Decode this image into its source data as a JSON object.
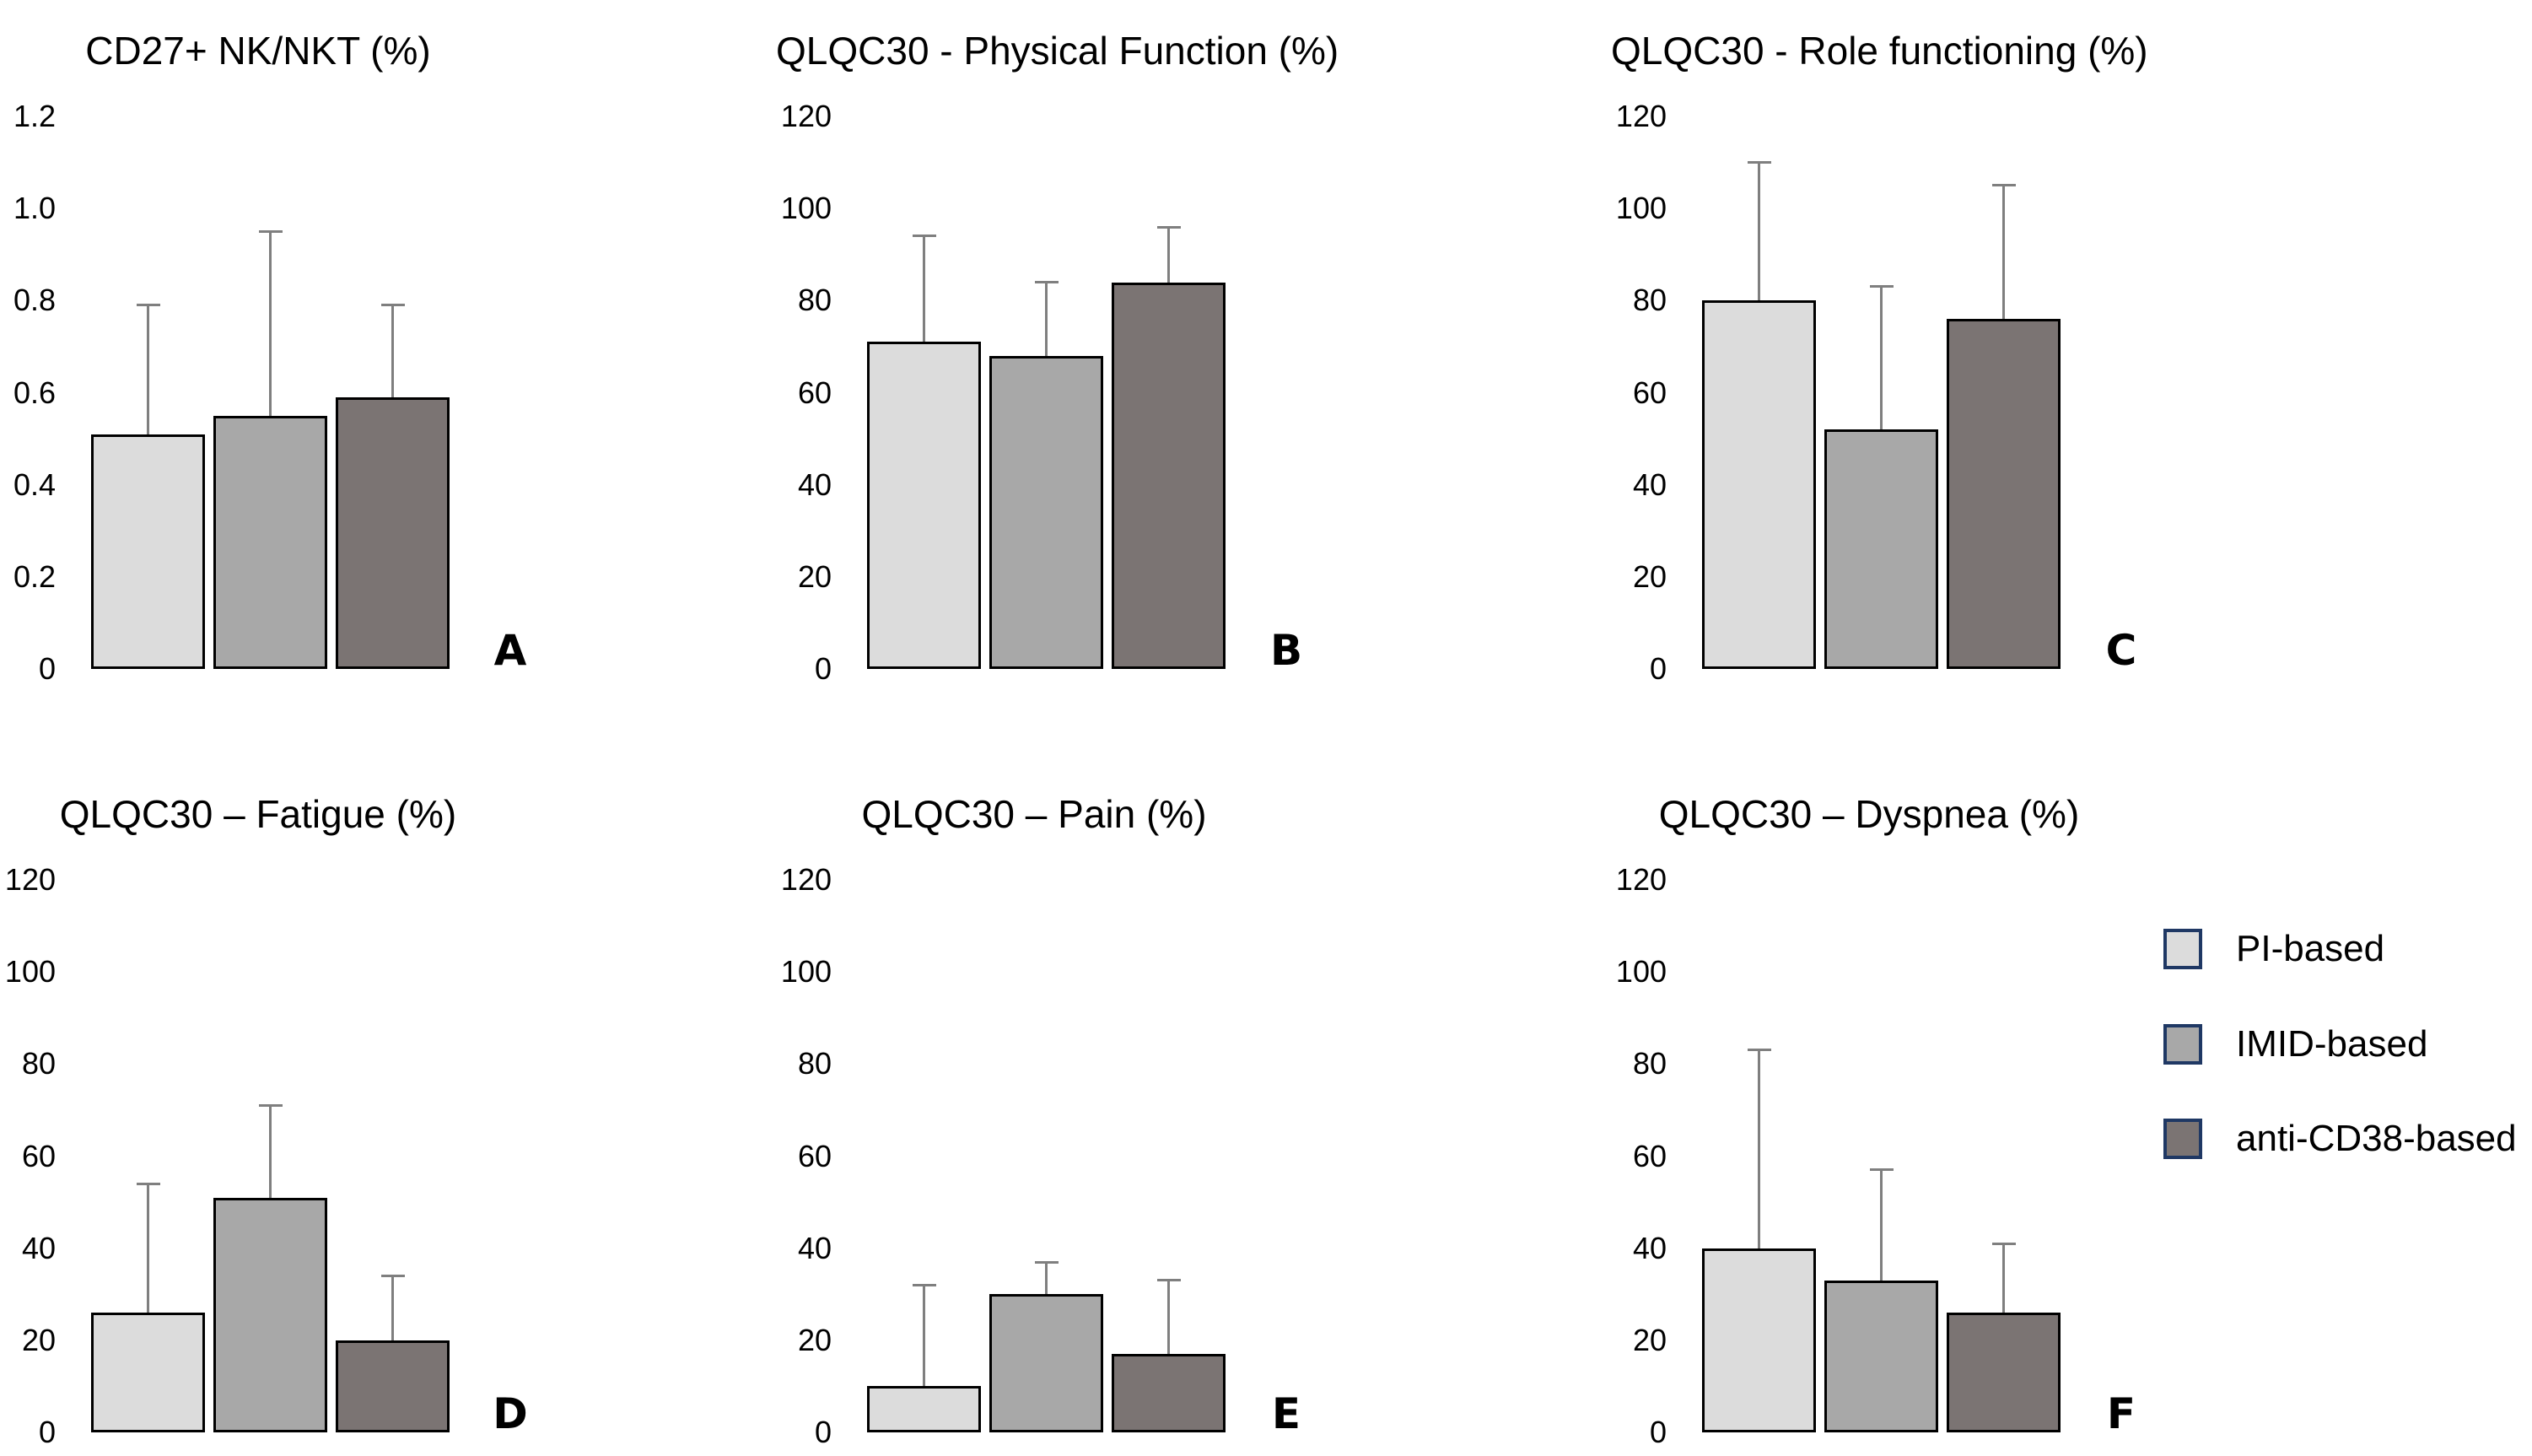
{
  "figure": {
    "background": "#ffffff",
    "bar_border_color": "#000000",
    "error_bar_color": "#7f7f7f",
    "description": "Six bar-chart panels (A-F) with SD error whiskers comparing three therapy groups"
  },
  "legend": {
    "position": "right-middle",
    "swatch_border_color": "#1f3864",
    "items": [
      {
        "label": "PI-based",
        "color": "#dcdcdc"
      },
      {
        "label": "IMID-based",
        "color": "#a8a8a8"
      },
      {
        "label": "anti-CD38-based",
        "color": "#7b7473"
      }
    ]
  },
  "chart_data": [
    {
      "type": "bar",
      "panel_letter": "A",
      "title": "CD27+ NK/NKT (%)",
      "categories": [
        "PI-based",
        "IMID-based",
        "anti-CD38-based"
      ],
      "values": [
        0.51,
        0.55,
        0.59
      ],
      "error_top": [
        0.79,
        0.95,
        0.79
      ],
      "ylim": [
        0,
        1.2
      ],
      "ytick_labels": [
        "1.2",
        "1.0",
        "0.8",
        "0.6",
        "0.4",
        "0.2",
        "0"
      ],
      "grid": false,
      "xlabel": "",
      "ylabel": ""
    },
    {
      "type": "bar",
      "panel_letter": "B",
      "title": "QLQC30 - Physical Function (%)",
      "categories": [
        "PI-based",
        "IMID-based",
        "anti-CD38-based"
      ],
      "values": [
        71,
        68,
        84
      ],
      "error_top": [
        94,
        84,
        96
      ],
      "ylim": [
        0,
        120
      ],
      "ytick_labels": [
        "120",
        "100",
        "80",
        "60",
        "40",
        "20",
        "0"
      ],
      "grid": false,
      "xlabel": "",
      "ylabel": ""
    },
    {
      "type": "bar",
      "panel_letter": "C",
      "title": "QLQC30 - Role functioning (%)",
      "categories": [
        "PI-based",
        "IMID-based",
        "anti-CD38-based"
      ],
      "values": [
        80,
        52,
        76
      ],
      "error_top": [
        110,
        83,
        105
      ],
      "ylim": [
        0,
        120
      ],
      "ytick_labels": [
        "120",
        "100",
        "80",
        "60",
        "40",
        "20",
        "0"
      ],
      "grid": false,
      "xlabel": "",
      "ylabel": ""
    },
    {
      "type": "bar",
      "panel_letter": "D",
      "title": "QLQC30 – Fatigue (%)",
      "categories": [
        "PI-based",
        "IMID-based",
        "anti-CD38-based"
      ],
      "values": [
        26,
        51,
        20
      ],
      "error_top": [
        54,
        71,
        34
      ],
      "ylim": [
        0,
        120
      ],
      "ytick_labels": [
        "120",
        "100",
        "80",
        "60",
        "40",
        "20",
        "0"
      ],
      "grid": false,
      "xlabel": "",
      "ylabel": ""
    },
    {
      "type": "bar",
      "panel_letter": "E",
      "title": "QLQC30 – Pain (%)",
      "categories": [
        "PI-based",
        "IMID-based",
        "anti-CD38-based"
      ],
      "values": [
        10,
        30,
        17
      ],
      "error_top": [
        32,
        37,
        33
      ],
      "ylim": [
        0,
        120
      ],
      "ytick_labels": [
        "120",
        "100",
        "80",
        "60",
        "40",
        "20",
        "0"
      ],
      "grid": false,
      "xlabel": "",
      "ylabel": ""
    },
    {
      "type": "bar",
      "panel_letter": "F",
      "title": "QLQC30 – Dyspnea (%)",
      "categories": [
        "PI-based",
        "IMID-based",
        "anti-CD38-based"
      ],
      "values": [
        40,
        33,
        26
      ],
      "error_top": [
        83,
        57,
        41
      ],
      "ylim": [
        0,
        120
      ],
      "ytick_labels": [
        "120",
        "100",
        "80",
        "60",
        "40",
        "20",
        "0"
      ],
      "grid": false,
      "xlabel": "",
      "ylabel": ""
    }
  ]
}
